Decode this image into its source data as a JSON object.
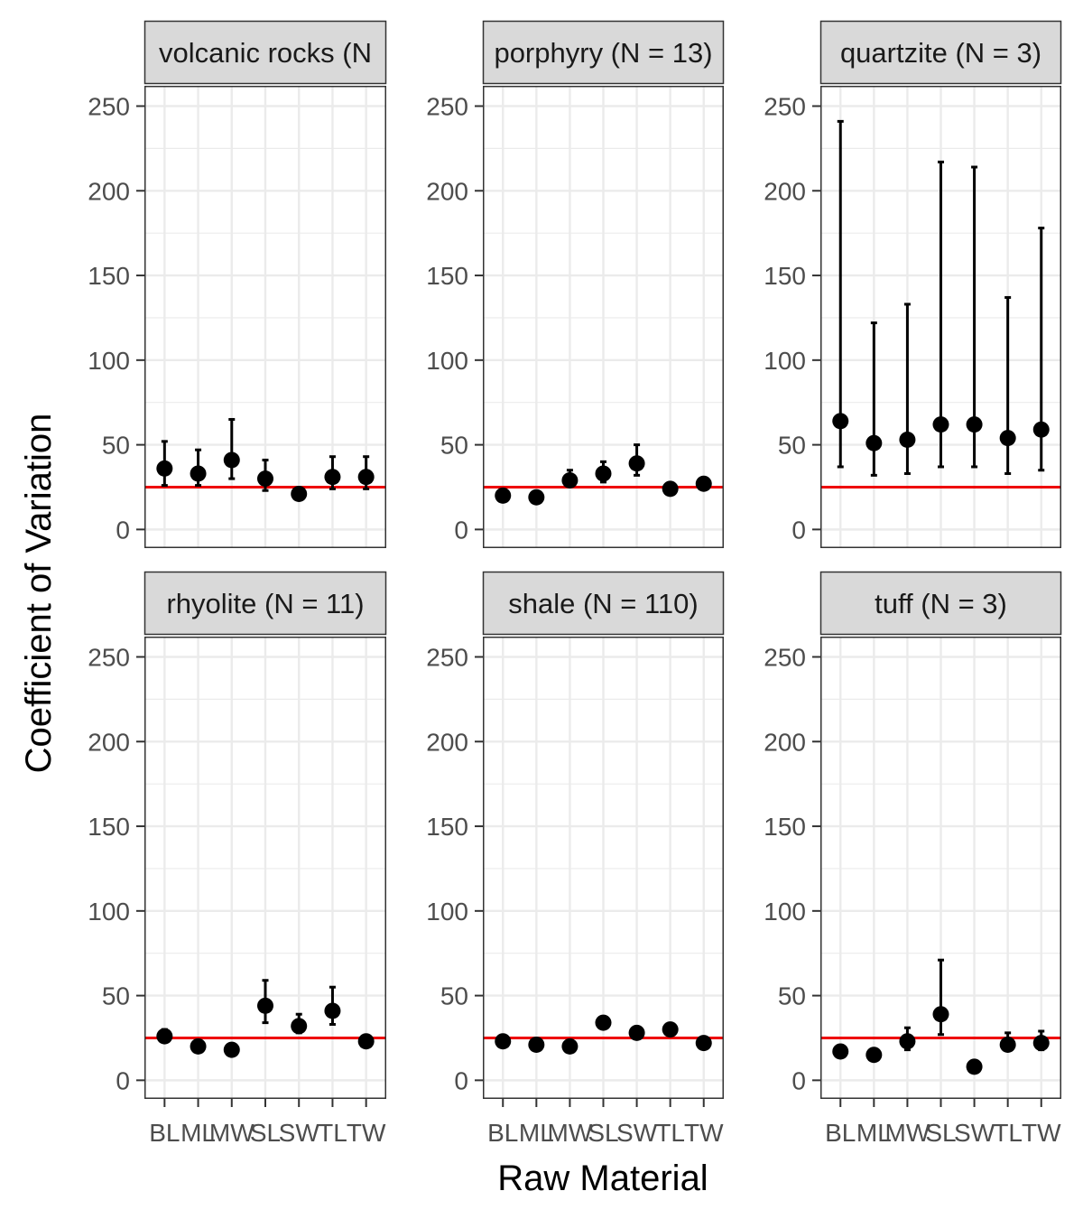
{
  "chart_data": {
    "type": "scatter",
    "subtype": "point-errorbar-facets",
    "xlabel": "Raw Material",
    "ylabel": "Coefficient of Variation",
    "categories": [
      "BL",
      "ML",
      "MW",
      "SL",
      "SW",
      "TL",
      "TW"
    ],
    "ylim": [
      -11,
      262
    ],
    "yticks": [
      0,
      50,
      100,
      150,
      200,
      250
    ],
    "grid": true,
    "reference_line": {
      "y": 25,
      "color": "#ee0000"
    },
    "colors": {
      "points": "#000000",
      "strip_bg": "#d9d9d9",
      "grid": "#ebebeb"
    },
    "panels": [
      {
        "title": "volcanic rocks (N",
        "values": [
          36,
          33,
          41,
          30,
          21,
          31,
          31
        ],
        "lower": [
          26,
          26,
          30,
          23,
          20,
          24,
          24
        ],
        "upper": [
          52,
          47,
          65,
          41,
          21,
          43,
          43
        ]
      },
      {
        "title": "porphyry (N = 13)",
        "values": [
          20,
          19,
          29,
          33,
          39,
          24,
          27
        ],
        "lower": [
          19,
          18,
          26,
          28,
          32,
          23,
          25
        ],
        "upper": [
          21,
          20,
          35,
          40,
          50,
          25,
          30
        ]
      },
      {
        "title": "quartzite (N = 3)",
        "values": [
          64,
          51,
          53,
          62,
          62,
          54,
          59
        ],
        "lower": [
          37,
          32,
          33,
          37,
          37,
          33,
          35
        ],
        "upper": [
          241,
          122,
          133,
          217,
          214,
          137,
          178
        ]
      },
      {
        "title": "rhyolite (N = 11)",
        "values": [
          26,
          20,
          18,
          44,
          32,
          41,
          23
        ],
        "lower": [
          23,
          19,
          17,
          34,
          28,
          33,
          22
        ],
        "upper": [
          30,
          21,
          19,
          59,
          39,
          55,
          24
        ]
      },
      {
        "title": "shale (N = 110)",
        "values": [
          23,
          21,
          20,
          34,
          28,
          30,
          22
        ],
        "lower": [
          22,
          20,
          19,
          33,
          27,
          29,
          21
        ],
        "upper": [
          24,
          22,
          21,
          35,
          29,
          31,
          23
        ]
      },
      {
        "title": "tuff (N = 3)",
        "values": [
          17,
          15,
          23,
          39,
          8,
          21,
          22
        ],
        "lower": [
          16,
          14,
          18,
          27,
          7,
          18,
          18
        ],
        "upper": [
          18,
          16,
          31,
          71,
          9,
          28,
          29
        ]
      }
    ]
  }
}
